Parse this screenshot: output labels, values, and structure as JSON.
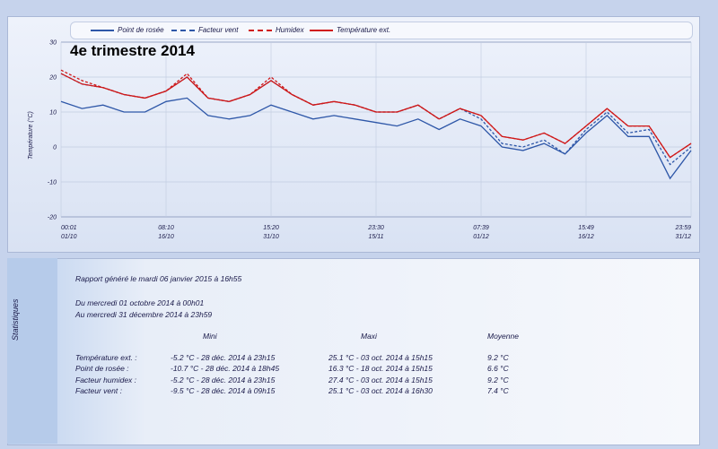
{
  "chart": {
    "title": "4e trimestre 2014",
    "ylabel": "Température (°C)",
    "legend": [
      {
        "label": "Point de rosée",
        "color": "#2e57a8",
        "dash": ""
      },
      {
        "label": "Facteur vent",
        "color": "#2e57a8",
        "dash": "3,2"
      },
      {
        "label": "Humidex",
        "color": "#d01818",
        "dash": "3,2"
      },
      {
        "label": "Température ext.",
        "color": "#d01818",
        "dash": ""
      }
    ],
    "y_ticks": [
      "30",
      "20",
      "10",
      "0",
      "-10",
      "-20"
    ],
    "x_ticks": [
      {
        "time": "00:01",
        "date": "01/10"
      },
      {
        "time": "08:10",
        "date": "16/10"
      },
      {
        "time": "15:20",
        "date": "31/10"
      },
      {
        "time": "23:30",
        "date": "15/11"
      },
      {
        "time": "07:39",
        "date": "01/12"
      },
      {
        "time": "15:49",
        "date": "16/12"
      },
      {
        "time": "23:59",
        "date": "31/12"
      }
    ]
  },
  "chart_data": {
    "type": "line",
    "title": "4e trimestre 2014",
    "ylabel": "Température (°C)",
    "xlabel": "",
    "ylim": [
      -20,
      30
    ],
    "x": [
      "01/10",
      "04/10",
      "07/10",
      "10/10",
      "13/10",
      "16/10",
      "19/10",
      "22/10",
      "25/10",
      "28/10",
      "31/10",
      "03/11",
      "06/11",
      "09/11",
      "12/11",
      "15/11",
      "18/11",
      "21/11",
      "24/11",
      "27/11",
      "30/11",
      "03/12",
      "06/12",
      "09/12",
      "12/12",
      "15/12",
      "18/12",
      "21/12",
      "24/12",
      "27/12",
      "31/12"
    ],
    "series": [
      {
        "name": "Température ext.",
        "values": [
          21,
          18,
          17,
          15,
          14,
          16,
          20,
          14,
          13,
          15,
          19,
          15,
          12,
          13,
          12,
          10,
          10,
          12,
          8,
          11,
          9,
          3,
          2,
          4,
          1,
          6,
          11,
          6,
          6,
          -3,
          1
        ]
      },
      {
        "name": "Humidex",
        "values": [
          22,
          19,
          17,
          15,
          14,
          16,
          21,
          14,
          13,
          15,
          20,
          15,
          12,
          13,
          12,
          10,
          10,
          12,
          8,
          11,
          9,
          3,
          2,
          4,
          1,
          6,
          11,
          6,
          6,
          -3,
          1
        ]
      },
      {
        "name": "Point de rosée",
        "values": [
          13,
          11,
          12,
          10,
          10,
          13,
          14,
          9,
          8,
          9,
          12,
          10,
          8,
          9,
          8,
          7,
          6,
          8,
          5,
          8,
          6,
          0,
          -1,
          1,
          -2,
          4,
          9,
          3,
          3,
          -9,
          -1
        ]
      },
      {
        "name": "Facteur vent",
        "values": [
          21,
          18,
          17,
          15,
          14,
          16,
          20,
          14,
          13,
          15,
          19,
          15,
          12,
          13,
          12,
          10,
          10,
          12,
          8,
          11,
          8,
          1,
          0,
          2,
          -2,
          5,
          10,
          4,
          5,
          -5,
          0
        ]
      }
    ]
  },
  "stats": {
    "side_label": "Statistiques",
    "report": "Rapport généré le mardi 06 janvier 2015 à 16h55",
    "from": "Du mercredi 01 octobre 2014 à 00h01",
    "to": "Au mercredi 31 décembre 2014 à 23h59",
    "headers": {
      "min": "Mini",
      "max": "Maxi",
      "avg": "Moyenne"
    },
    "rows": [
      {
        "label": "Température ext. :",
        "min": "-5.2 °C - 28 déc. 2014 à 23h15",
        "max": "25.1 °C - 03 oct. 2014 à 15h15",
        "avg": "9.2 °C"
      },
      {
        "label": "Point de rosée :",
        "min": "-10.7 °C - 28 déc. 2014 à 18h45",
        "max": "16.3 °C - 18 oct. 2014 à 15h15",
        "avg": "6.6 °C"
      },
      {
        "label": "Facteur humidex :",
        "min": "-5.2 °C - 28 déc. 2014 à 23h15",
        "max": "27.4 °C - 03 oct. 2014 à 15h15",
        "avg": "9.2 °C"
      },
      {
        "label": "Facteur vent :",
        "min": "-9.5 °C - 28 déc. 2014 à 09h15",
        "max": "25.1 °C - 03 oct. 2014 à 16h30",
        "avg": "7.4 °C"
      }
    ]
  }
}
